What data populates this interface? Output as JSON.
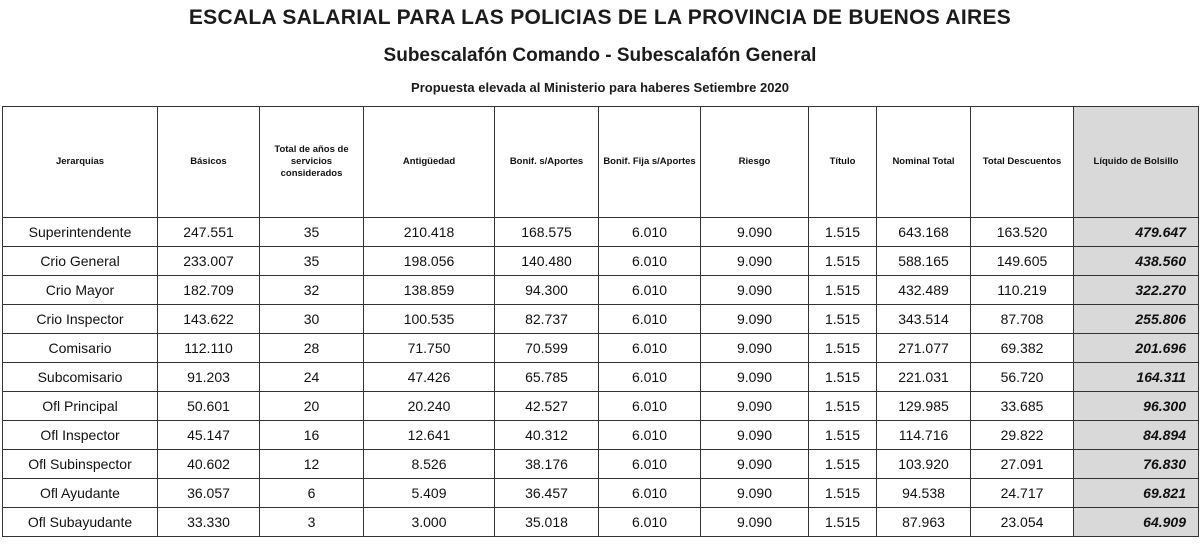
{
  "title": "ESCALA SALARIAL PARA LAS POLICIAS DE LA PROVINCIA DE BUENOS AIRES",
  "subtitle": "Subescalafón Comando - Subescalafón General",
  "proposal": "Propuesta elevada al Ministerio para haberes Setiembre 2020",
  "columns": [
    "Jerarquias",
    "Básicos",
    "Total de años de servicios considerados",
    "Antigüedad",
    "Bonif. s/Aportes",
    "Bonif. Fija s/Aportes",
    "Riesgo",
    "Título",
    "Nominal Total",
    "Total Descuentos",
    "Líquido de Bolsillo"
  ],
  "rows": [
    [
      "Superintendente",
      "247.551",
      "35",
      "210.418",
      "168.575",
      "6.010",
      "9.090",
      "1.515",
      "643.168",
      "163.520",
      "479.647"
    ],
    [
      "Crio General",
      "233.007",
      "35",
      "198.056",
      "140.480",
      "6.010",
      "9.090",
      "1.515",
      "588.165",
      "149.605",
      "438.560"
    ],
    [
      "Crio Mayor",
      "182.709",
      "32",
      "138.859",
      "94.300",
      "6.010",
      "9.090",
      "1.515",
      "432.489",
      "110.219",
      "322.270"
    ],
    [
      "Crio Inspector",
      "143.622",
      "30",
      "100.535",
      "82.737",
      "6.010",
      "9.090",
      "1.515",
      "343.514",
      "87.708",
      "255.806"
    ],
    [
      "Comisario",
      "112.110",
      "28",
      "71.750",
      "70.599",
      "6.010",
      "9.090",
      "1.515",
      "271.077",
      "69.382",
      "201.696"
    ],
    [
      "Subcomisario",
      "91.203",
      "24",
      "47.426",
      "65.785",
      "6.010",
      "9.090",
      "1.515",
      "221.031",
      "56.720",
      "164.311"
    ],
    [
      "Ofl Principal",
      "50.601",
      "20",
      "20.240",
      "42.527",
      "6.010",
      "9.090",
      "1.515",
      "129.985",
      "33.685",
      "96.300"
    ],
    [
      "Ofl Inspector",
      "45.147",
      "16",
      "12.641",
      "40.312",
      "6.010",
      "9.090",
      "1.515",
      "114.716",
      "29.822",
      "84.894"
    ],
    [
      "Ofl Subinspector",
      "40.602",
      "12",
      "8.526",
      "38.176",
      "6.010",
      "9.090",
      "1.515",
      "103.920",
      "27.091",
      "76.830"
    ],
    [
      "Ofl Ayudante",
      "36.057",
      "6",
      "5.409",
      "36.457",
      "6.010",
      "9.090",
      "1.515",
      "94.538",
      "24.717",
      "69.821"
    ],
    [
      "Ofl Subayudante",
      "33.330",
      "3",
      "3.000",
      "35.018",
      "6.010",
      "9.090",
      "1.515",
      "87.963",
      "23.054",
      "64.909"
    ]
  ]
}
